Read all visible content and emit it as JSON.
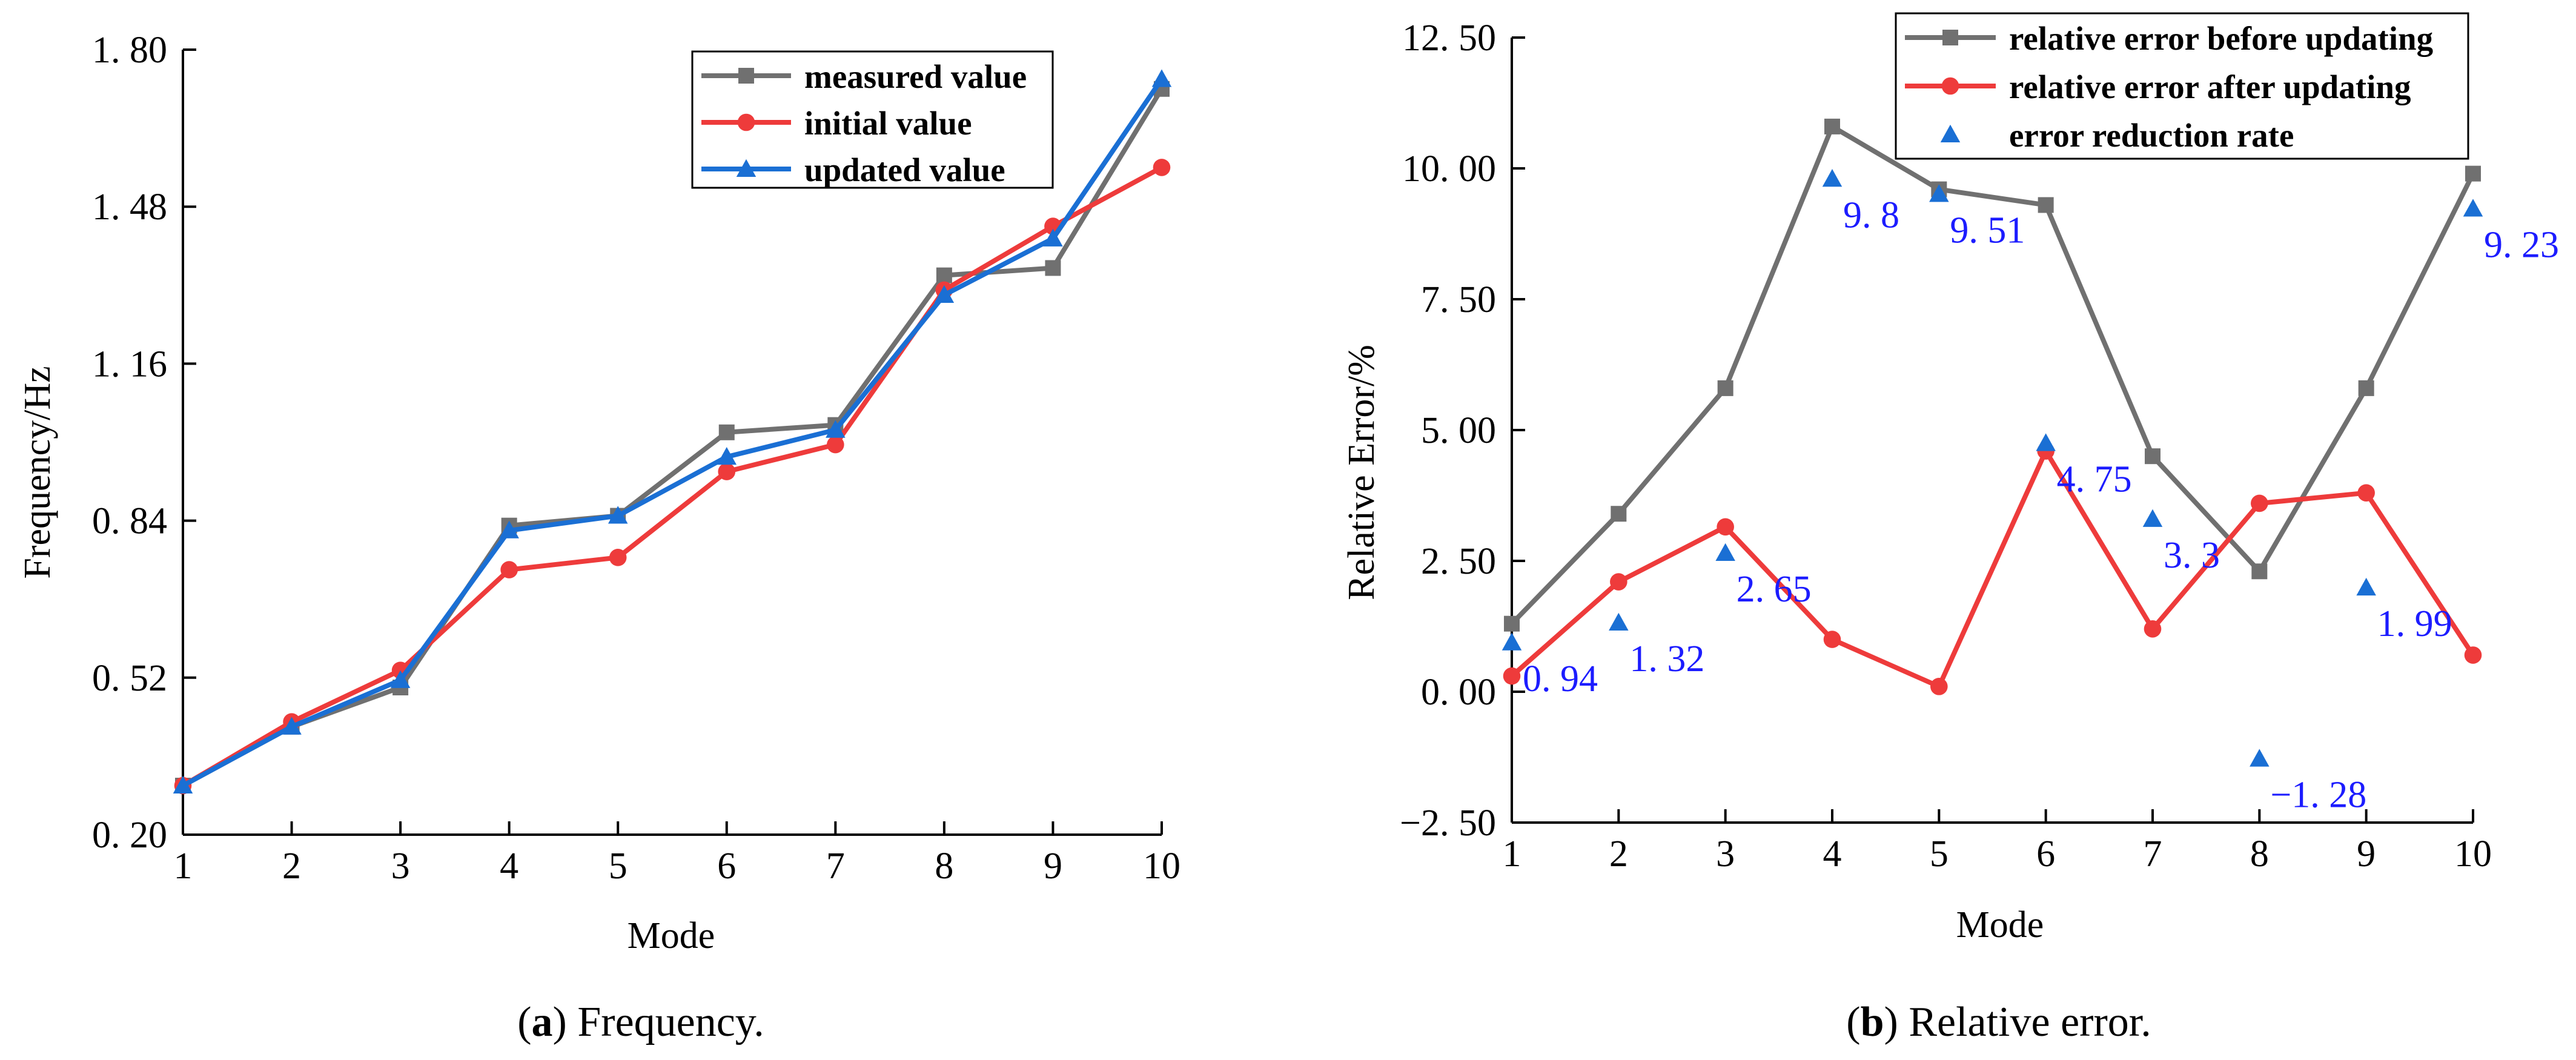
{
  "captions": {
    "a": {
      "letter": "a",
      "text": "Frequency."
    },
    "b": {
      "letter": "b",
      "text": "Relative error."
    }
  },
  "chart_data": [
    {
      "type": "line",
      "id": "a",
      "xlabel": "Mode",
      "ylabel": "Frequency/Hz",
      "x": [
        1,
        2,
        3,
        4,
        5,
        6,
        7,
        8,
        9,
        10
      ],
      "xlim": [
        1,
        10
      ],
      "xticks": [
        "1",
        "2",
        "3",
        "4",
        "5",
        "6",
        "7",
        "8",
        "9",
        "10"
      ],
      "ylim": [
        0.2,
        1.8
      ],
      "yticks": [
        0.2,
        0.52,
        0.84,
        1.16,
        1.48,
        1.8
      ],
      "ytick_labels": [
        "0. 20",
        "0. 52",
        "0. 84",
        "1. 16",
        "1. 48",
        "1. 80"
      ],
      "legend_position": "top-right",
      "series": [
        {
          "name": "measured value",
          "color": "#707070",
          "marker": "square",
          "values": [
            0.3,
            0.42,
            0.5,
            0.83,
            0.85,
            1.02,
            1.035,
            1.34,
            1.355,
            1.72
          ]
        },
        {
          "name": "initial value",
          "color": "#ee3b3b",
          "marker": "circle",
          "values": [
            0.3,
            0.43,
            0.535,
            0.74,
            0.765,
            0.94,
            0.995,
            1.31,
            1.44,
            1.56
          ]
        },
        {
          "name": "updated value",
          "color": "#1a6fd4",
          "marker": "triangle",
          "values": [
            0.3,
            0.42,
            0.515,
            0.82,
            0.85,
            0.97,
            1.025,
            1.3,
            1.415,
            1.74
          ]
        }
      ]
    },
    {
      "type": "line",
      "id": "b",
      "xlabel": "Mode",
      "ylabel": "Relative Error/%",
      "x": [
        1,
        2,
        3,
        4,
        5,
        6,
        7,
        8,
        9,
        10
      ],
      "xlim": [
        1,
        10
      ],
      "xticks": [
        "1",
        "2",
        "3",
        "4",
        "5",
        "6",
        "7",
        "8",
        "9",
        "10"
      ],
      "ylim": [
        -2.5,
        12.5
      ],
      "yticks": [
        -2.5,
        0,
        2.5,
        5,
        7.5,
        10,
        12.5
      ],
      "ytick_labels": [
        "−2. 50",
        "0. 00",
        "2. 50",
        "5. 00",
        "7. 50",
        "10. 00",
        "12. 50"
      ],
      "legend_position": "top-right",
      "series": [
        {
          "name": "relative error before updating",
          "color": "#707070",
          "marker": "square",
          "values": [
            1.3,
            3.4,
            5.8,
            10.8,
            9.6,
            9.3,
            4.5,
            2.3,
            5.8,
            9.9
          ]
        },
        {
          "name": "relative error after updating",
          "color": "#ee3b3b",
          "marker": "circle",
          "values": [
            0.3,
            2.1,
            3.15,
            1.0,
            0.1,
            4.6,
            1.2,
            3.6,
            3.8,
            0.7
          ]
        },
        {
          "name": "error reduction rate",
          "color": "#1a6fd4",
          "marker": "triangle",
          "line": false,
          "values": [
            0.94,
            1.32,
            2.65,
            9.8,
            9.51,
            4.75,
            3.3,
            -1.28,
            1.99,
            9.23
          ],
          "labels": [
            "0. 94",
            "1. 32",
            "2. 65",
            "9. 8",
            "9. 51",
            "4. 75",
            "3. 3",
            "−1. 28",
            "1. 99",
            "9. 23"
          ]
        }
      ]
    }
  ]
}
